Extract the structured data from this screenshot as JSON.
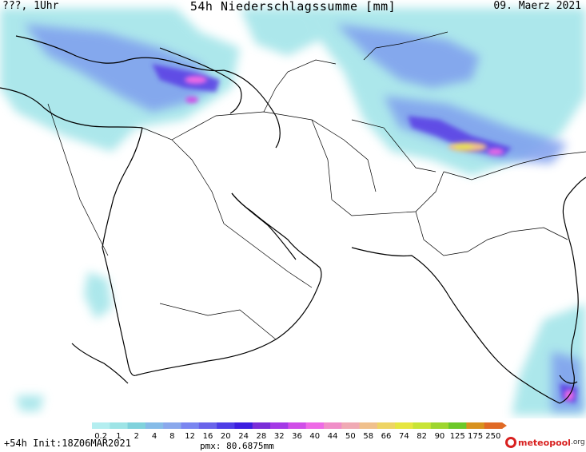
{
  "header": {
    "left": "???, 1Uhr",
    "title": "54h Niederschlagssumme [mm]",
    "date": "09. Maerz 2021"
  },
  "legend": {
    "ticks": [
      "0.2",
      "1",
      "2",
      "4",
      "8",
      "12",
      "16",
      "20",
      "24",
      "28",
      "32",
      "36",
      "40",
      "44",
      "50",
      "58",
      "66",
      "74",
      "82",
      "90",
      "125",
      "175",
      "250"
    ],
    "colors": [
      "#b4eef0",
      "#9ee4e6",
      "#80d2dc",
      "#86bce8",
      "#8aa8ec",
      "#7a86f0",
      "#6a64ea",
      "#4e3ee6",
      "#3c1ee0",
      "#7a2ed8",
      "#a43ae6",
      "#d04ee8",
      "#ee6ae6",
      "#f08ec8",
      "#f0aab4",
      "#f0c08c",
      "#eed464",
      "#e6e640",
      "#c8e436",
      "#9ed62e",
      "#6cc828",
      "#d8921e",
      "#e06a26"
    ]
  },
  "footer": {
    "run": "+54h Init:18Z06MAR2021",
    "pmx": "pmx: 80.6875mm",
    "brand": "meteopool",
    "tld": ".org"
  }
}
